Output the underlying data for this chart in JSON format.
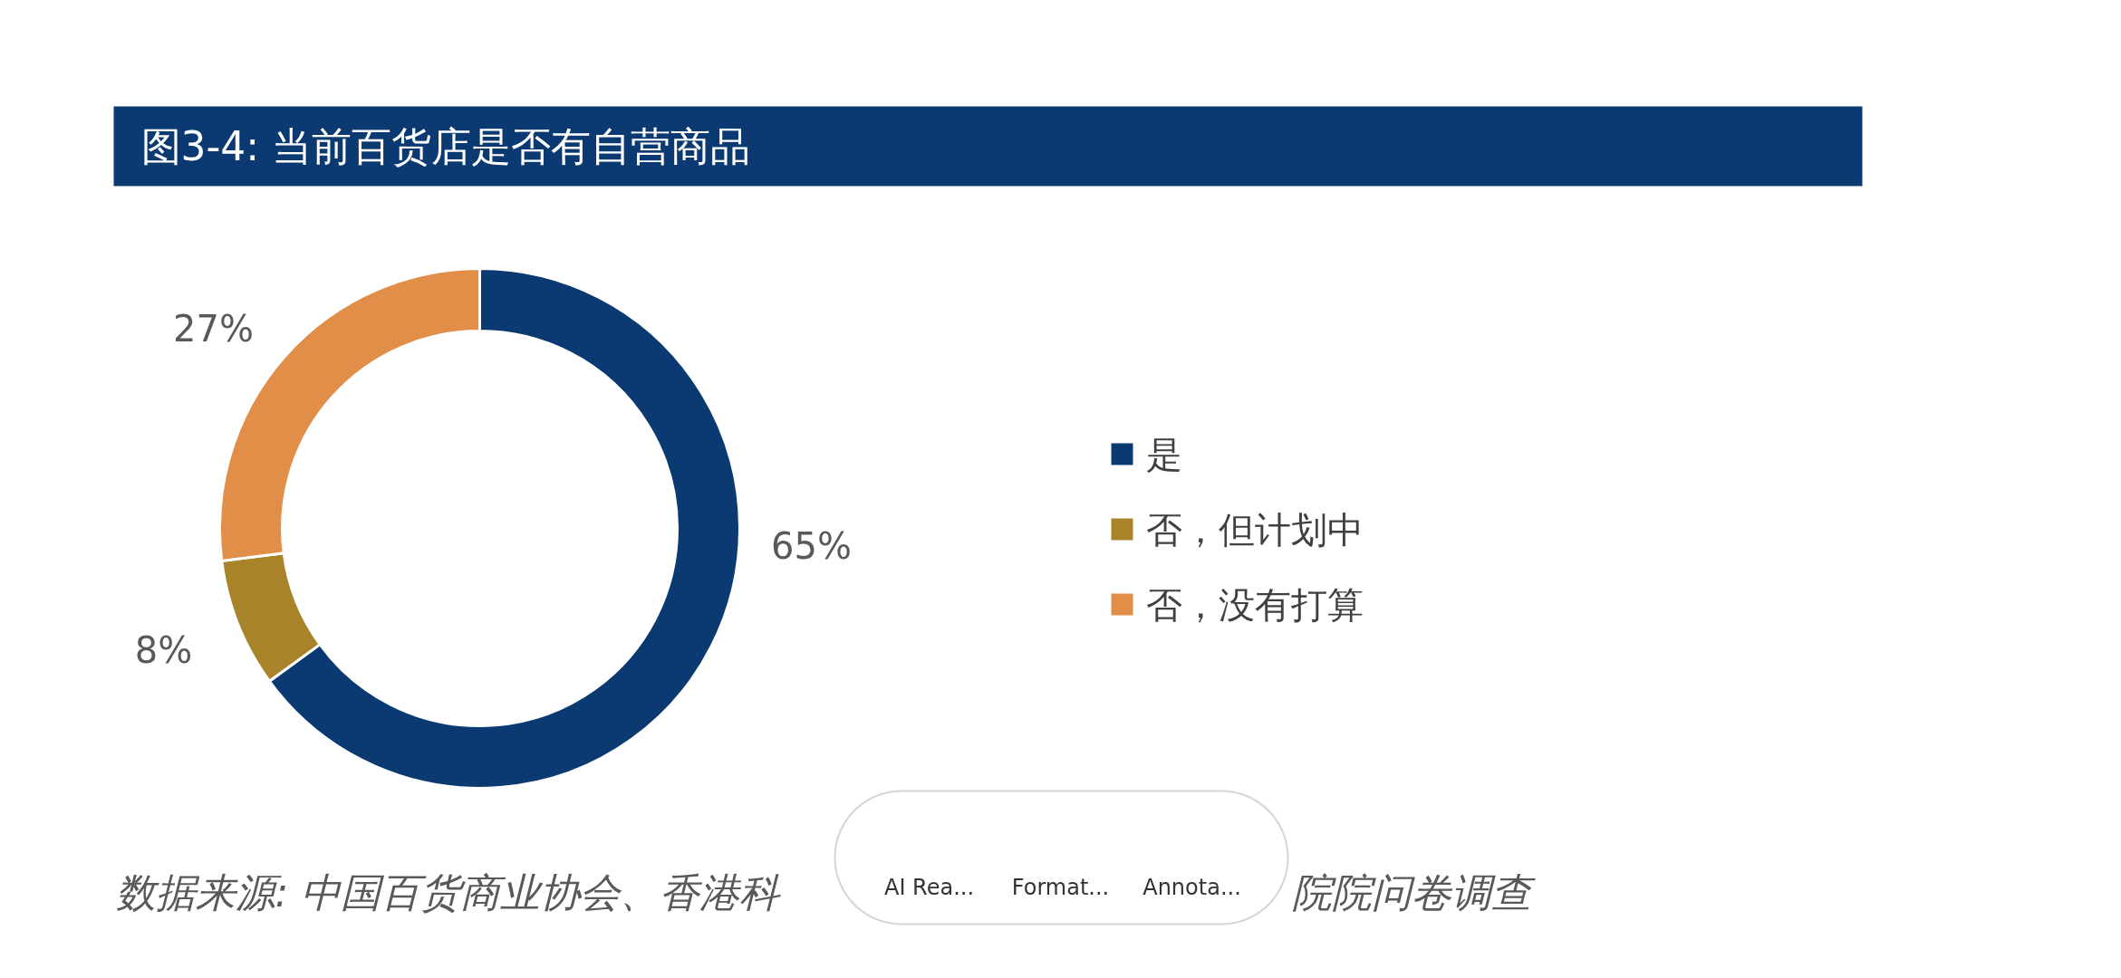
{
  "chart_data": {
    "type": "donut",
    "title": "图3-4: 当前百货店是否有自营商品",
    "categories": [
      "是",
      "否，但计划中",
      "否，没有打算"
    ],
    "values": [
      65,
      8,
      27
    ],
    "colors": [
      "#0b3a73",
      "#a8832a",
      "#e08e48"
    ],
    "value_labels": [
      "65%",
      "8%",
      "27%"
    ],
    "legend": "right",
    "annotations": [
      "数据来源: 中国百货商业协会、香港科",
      "院院问卷调查",
      "AI Rea...",
      "Format...",
      "Annota..."
    ]
  }
}
